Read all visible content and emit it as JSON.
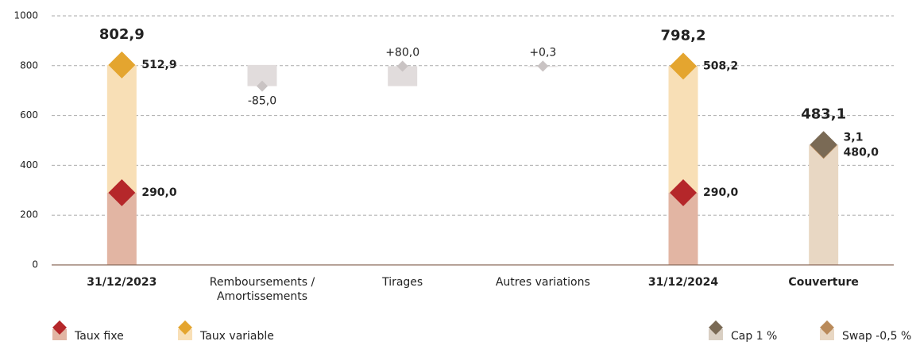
{
  "chart_data": {
    "type": "waterfall",
    "categories": [
      "31/12/2023",
      "Remboursements / Amortissements",
      "Tirages",
      "Autres variations",
      "31/12/2024",
      "Couverture"
    ],
    "series": [
      {
        "name": "Taux fixe",
        "color": "#b5272a",
        "bar_color": "#e2b5a3",
        "values": [
          290.0,
          null,
          null,
          null,
          290.0,
          null
        ],
        "value_labels": [
          "290,0",
          null,
          null,
          null,
          "290,0",
          null
        ]
      },
      {
        "name": "Taux variable",
        "color": "#e4a52f",
        "bar_color": "#f8dfb6",
        "values": [
          512.9,
          null,
          null,
          null,
          508.2,
          null
        ],
        "value_labels": [
          "512,9",
          null,
          null,
          null,
          "508,2",
          null
        ]
      },
      {
        "name": "Swap -0,5 %",
        "color": "#b98a5a",
        "bar_color": "#e8d7c3",
        "values": [
          null,
          null,
          null,
          null,
          null,
          480.0
        ],
        "value_labels": [
          null,
          null,
          null,
          null,
          null,
          "480,0"
        ]
      },
      {
        "name": "Cap 1 %",
        "color": "#7a6a55",
        "bar_color": "#d9cfc3",
        "values": [
          null,
          null,
          null,
          null,
          null,
          3.1
        ],
        "value_labels": [
          null,
          null,
          null,
          null,
          null,
          "3,1"
        ]
      }
    ],
    "changes": {
      "color": "#c9c3c3",
      "bar_color": "#e1dcdc",
      "values": [
        null,
        -85.0,
        80.0,
        0.3,
        null,
        null
      ],
      "value_labels": [
        null,
        "-85,0",
        "+80,0",
        "+0,3",
        null,
        null
      ]
    },
    "totals": {
      "values": [
        802.9,
        null,
        null,
        null,
        798.2,
        483.1
      ],
      "value_labels": [
        "802,9",
        null,
        null,
        null,
        "798,2",
        "483,1"
      ]
    },
    "ylim": [
      0,
      1000
    ],
    "yticks": [
      0,
      200,
      400,
      600,
      800,
      1000
    ],
    "grid": true
  }
}
